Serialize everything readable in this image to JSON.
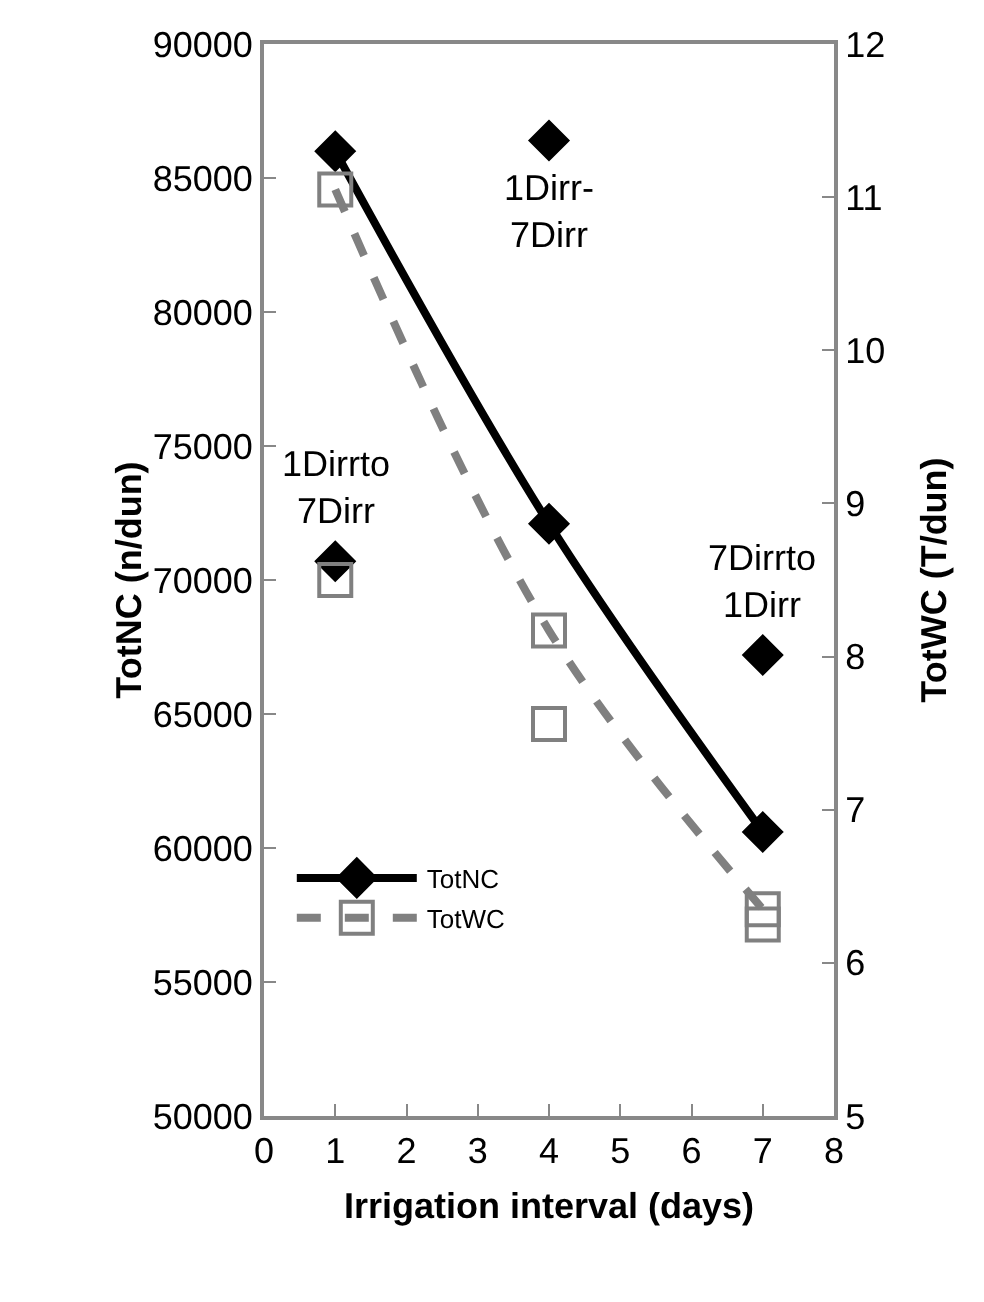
{
  "chart_data": {
    "type": "line",
    "xlabel": "Irrigation interval (days)",
    "ylabel": "TotNC (n/dun)",
    "y2label": "TotWC (T/dun)",
    "x": [
      1,
      4,
      7
    ],
    "series": [
      {
        "name": "TotNC",
        "color": "#000000",
        "values": [
          86000,
          72100,
          60600
        ],
        "marker": "diamond",
        "line_style": "solid"
      },
      {
        "name": "TotWC",
        "color": "#808080",
        "values": [
          11.05,
          8.17,
          6.35
        ],
        "marker": "square",
        "line_style": "dashed",
        "axis": "y2"
      },
      {
        "type": "scatter",
        "color": "#000000",
        "x": [
          1,
          4,
          7
        ],
        "values": [
          70700,
          86400,
          67200
        ],
        "marker": "diamond"
      },
      {
        "type": "scatter",
        "color": "#808080",
        "x": [
          1,
          4,
          7
        ],
        "values": [
          8.5,
          7.56,
          6.25
        ],
        "marker": "square",
        "axis": "y2"
      }
    ],
    "xlim": [
      0,
      8
    ],
    "xticks": [
      0,
      1,
      2,
      3,
      4,
      5,
      6,
      7,
      8
    ],
    "ylim": [
      50000,
      90000
    ],
    "yticks": [
      50000,
      55000,
      60000,
      65000,
      70000,
      75000,
      80000,
      85000,
      90000
    ],
    "y2lim": [
      5,
      12
    ],
    "y2ticks": [
      5,
      6,
      7,
      8,
      9,
      10,
      11,
      12
    ],
    "annotations": [
      {
        "text": "1Dirrto\n7Dirr",
        "x": 1,
        "y": 70700
      },
      {
        "text": "1Dirr-\n7Dirr",
        "x": 4,
        "y": 86400
      },
      {
        "text": "7Dirrto\n1Dirr",
        "x": 7,
        "y": 67200
      }
    ],
    "grid": false,
    "legend": "bottom left"
  }
}
